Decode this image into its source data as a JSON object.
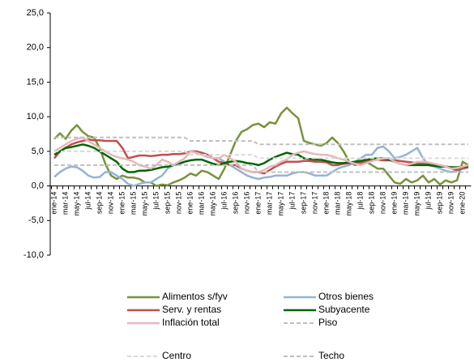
{
  "chart_data": {
    "type": "line",
    "categories": [
      "ene-14",
      null,
      "mar-14",
      null,
      "may-14",
      null,
      "jul-14",
      null,
      "sep-14",
      null,
      "nov-14",
      null,
      "ene-15",
      null,
      "mar-15",
      null,
      "may-15",
      null,
      "jul-15",
      null,
      "sep-15",
      null,
      "nov-15",
      null,
      "ene-16",
      null,
      "mar-16",
      null,
      "may-16",
      null,
      "jul-16",
      null,
      "sep-16",
      null,
      "nov-16",
      null,
      "ene-17",
      null,
      "mar-17",
      null,
      "may-17",
      null,
      "jul-17",
      null,
      "sep-17",
      null,
      "nov-17",
      null,
      "ene-18",
      null,
      "mar-18",
      null,
      "may-18",
      null,
      "jul-18",
      null,
      "sep-18",
      null,
      "nov-18",
      null,
      "ene-19",
      null,
      "mar-19",
      null,
      "may-19",
      null,
      "jul-19",
      null,
      "sep-19",
      null,
      "nov-19",
      null,
      "ene-20",
      null
    ],
    "ylim": [
      -10,
      25
    ],
    "yticks": [
      {
        "value": -10,
        "label": "-10,0"
      },
      {
        "value": -5,
        "label": "-5,0"
      },
      {
        "value": 0,
        "label": "0,0"
      },
      {
        "value": 5,
        "label": "5,0"
      },
      {
        "value": 10,
        "label": "10,0"
      },
      {
        "value": 15,
        "label": "15,0"
      },
      {
        "value": 20,
        "label": "20,0"
      },
      {
        "value": 25,
        "label": "25,0"
      }
    ],
    "series": [
      {
        "name": "Alimentos s/fyv",
        "color": "#77933c",
        "dashed": false,
        "values": [
          6.8,
          7.6,
          6.8,
          8.0,
          8.8,
          7.8,
          7.2,
          7.0,
          5.5,
          3.2,
          1.5,
          1.0,
          1.5,
          1.2,
          1.2,
          1.0,
          0.5,
          0.5,
          0.0,
          0.2,
          0.1,
          0.5,
          0.8,
          1.2,
          1.8,
          1.5,
          2.2,
          2.0,
          1.5,
          1.0,
          2.5,
          4.5,
          6.5,
          7.8,
          8.2,
          8.8,
          9.0,
          8.5,
          9.2,
          9.0,
          10.5,
          11.3,
          10.5,
          9.8,
          6.5,
          6.2,
          6.0,
          5.8,
          6.2,
          7.0,
          6.2,
          5.0,
          3.5,
          3.0,
          3.2,
          3.5,
          3.0,
          2.5,
          2.5,
          1.5,
          0.5,
          0.3,
          1.0,
          0.5,
          0.8,
          1.5,
          0.5,
          1.0,
          0.2,
          0.8,
          0.5,
          0.8,
          3.5,
          3.0
        ]
      },
      {
        "name": "Otros bienes",
        "color": "#95b3d7",
        "dashed": false,
        "values": [
          1.3,
          2.0,
          2.5,
          2.8,
          2.7,
          2.2,
          1.5,
          1.2,
          1.3,
          2.0,
          2.0,
          1.5,
          1.0,
          0.3,
          0.0,
          0.3,
          0.5,
          0.5,
          1.0,
          1.5,
          2.5,
          3.0,
          3.5,
          4.0,
          5.0,
          4.8,
          4.5,
          4.2,
          4.0,
          4.0,
          3.5,
          3.0,
          2.5,
          2.0,
          1.5,
          1.2,
          1.0,
          1.2,
          1.3,
          1.5,
          1.5,
          1.5,
          1.8,
          2.0,
          2.0,
          1.8,
          1.5,
          1.5,
          1.5,
          2.0,
          2.5,
          2.8,
          3.0,
          3.5,
          4.0,
          4.5,
          4.5,
          5.5,
          5.7,
          5.0,
          4.0,
          4.2,
          4.5,
          5.0,
          5.5,
          4.0,
          3.0,
          2.8,
          2.5,
          2.2,
          2.0,
          2.2,
          2.5,
          2.6
        ]
      },
      {
        "name": "Serv. y rentas",
        "color": "#c0504d",
        "dashed": false,
        "values": [
          4.0,
          5.0,
          5.5,
          6.0,
          6.3,
          6.5,
          6.7,
          6.6,
          6.6,
          6.5,
          6.5,
          6.5,
          5.5,
          4.0,
          4.2,
          4.4,
          4.4,
          4.3,
          4.4,
          4.5,
          4.5,
          4.6,
          4.6,
          4.7,
          5.0,
          5.0,
          4.8,
          4.5,
          4.0,
          3.5,
          3.3,
          3.0,
          3.0,
          2.5,
          2.2,
          2.0,
          2.0,
          1.8,
          2.3,
          2.8,
          3.2,
          3.5,
          3.5,
          3.5,
          3.6,
          3.6,
          3.5,
          3.5,
          3.4,
          3.0,
          3.0,
          3.2,
          3.3,
          3.3,
          3.4,
          3.5,
          3.8,
          3.8,
          3.7,
          3.7,
          3.7,
          3.6,
          3.5,
          3.4,
          3.3,
          3.3,
          3.2,
          3.1,
          3.0,
          2.8,
          2.5,
          2.3,
          2.5,
          2.8
        ]
      },
      {
        "name": "Subyacente",
        "color": "#006600",
        "dashed": false,
        "values": [
          4.5,
          5.0,
          5.5,
          5.6,
          5.8,
          6.0,
          5.8,
          5.5,
          5.0,
          4.5,
          4.0,
          3.5,
          2.5,
          2.0,
          2.0,
          2.2,
          2.2,
          2.3,
          2.5,
          2.7,
          2.8,
          3.0,
          3.2,
          3.5,
          3.7,
          3.8,
          3.8,
          3.5,
          3.2,
          3.0,
          3.3,
          3.5,
          3.6,
          3.5,
          3.3,
          3.2,
          3.0,
          3.3,
          3.8,
          4.2,
          4.5,
          4.8,
          4.6,
          4.5,
          4.0,
          3.9,
          3.8,
          3.8,
          3.6,
          3.4,
          3.3,
          3.3,
          3.4,
          3.5,
          3.6,
          3.8,
          3.9,
          4.0,
          4.0,
          3.8,
          3.5,
          3.2,
          3.0,
          3.0,
          3.0,
          3.0,
          3.0,
          2.9,
          2.8,
          2.8,
          2.7,
          2.7,
          2.8,
          2.8
        ]
      },
      {
        "name": "Inflación total",
        "color": "#e6b9b8",
        "dashed": false,
        "values": [
          5.0,
          5.5,
          6.0,
          6.5,
          6.8,
          7.0,
          6.5,
          6.0,
          5.5,
          5.0,
          4.5,
          4.2,
          4.0,
          3.8,
          3.5,
          3.0,
          2.8,
          2.5,
          3.0,
          3.8,
          3.5,
          3.0,
          3.5,
          4.0,
          5.0,
          4.8,
          4.5,
          4.3,
          4.0,
          4.0,
          4.5,
          4.0,
          3.5,
          2.5,
          2.2,
          2.0,
          2.0,
          2.3,
          2.8,
          3.0,
          3.5,
          3.8,
          4.5,
          4.8,
          5.0,
          4.8,
          4.6,
          4.5,
          4.5,
          4.3,
          4.0,
          3.8,
          3.5,
          3.2,
          3.0,
          3.3,
          3.6,
          3.8,
          4.0,
          4.0,
          3.5,
          3.2,
          3.0,
          3.2,
          3.5,
          3.5,
          3.4,
          3.2,
          3.0,
          2.8,
          2.5,
          2.6,
          2.8,
          3.0
        ]
      },
      {
        "name": "Piso",
        "color": "#bfbfbf",
        "dashed": true,
        "values": [
          3,
          3,
          3,
          3,
          3,
          3,
          3,
          3,
          3,
          3,
          3,
          3,
          3,
          3,
          3,
          3,
          3,
          3,
          3,
          3,
          3,
          3,
          3,
          3,
          3,
          3,
          3,
          3,
          3,
          3,
          3,
          3,
          3,
          3,
          3,
          3,
          2,
          2,
          2,
          2,
          2,
          2,
          2,
          2,
          2,
          2,
          2,
          2,
          2,
          2,
          2,
          2,
          2,
          2,
          2,
          2,
          2,
          2,
          2,
          2,
          2,
          2,
          2,
          2,
          2,
          2,
          2,
          2,
          2,
          2,
          2,
          2,
          2,
          2
        ]
      },
      {
        "name": "Centro",
        "color": "#d9d9d9",
        "dashed": true,
        "values": [
          5,
          5,
          5,
          5,
          5,
          5,
          5,
          5,
          5,
          5,
          5,
          5,
          5,
          5,
          5,
          5,
          5,
          5,
          5,
          5,
          5,
          5,
          5,
          5,
          4.5,
          4.5,
          4.5,
          4.5,
          4.5,
          4.5,
          4.5,
          4.5,
          4.5,
          4.5,
          4.5,
          4.5,
          4,
          4,
          4,
          4,
          4,
          4,
          4,
          4,
          4,
          4,
          4,
          4,
          4,
          4,
          4,
          4,
          4,
          4,
          4,
          4,
          4,
          4,
          4,
          4,
          4,
          4,
          4,
          4,
          4,
          4,
          4,
          4,
          4,
          4,
          4,
          4,
          4,
          4
        ]
      },
      {
        "name": "Techo",
        "color": "#bfbfbf",
        "dashed": true,
        "values": [
          7,
          7,
          7,
          7,
          7,
          7,
          7,
          7,
          7,
          7,
          7,
          7,
          7,
          7,
          7,
          7,
          7,
          7,
          7,
          7,
          7,
          7,
          7,
          7,
          6.5,
          6.5,
          6.5,
          6.5,
          6.5,
          6.5,
          6.5,
          6.5,
          6.5,
          6.5,
          6.5,
          6.5,
          6,
          6,
          6,
          6,
          6,
          6,
          6,
          6,
          6,
          6,
          6,
          6,
          6,
          6,
          6,
          6,
          6,
          6,
          6,
          6,
          6,
          6,
          6,
          6,
          6,
          6,
          6,
          6,
          6,
          6,
          6,
          6,
          6,
          6,
          6,
          6,
          6,
          6
        ]
      }
    ]
  }
}
